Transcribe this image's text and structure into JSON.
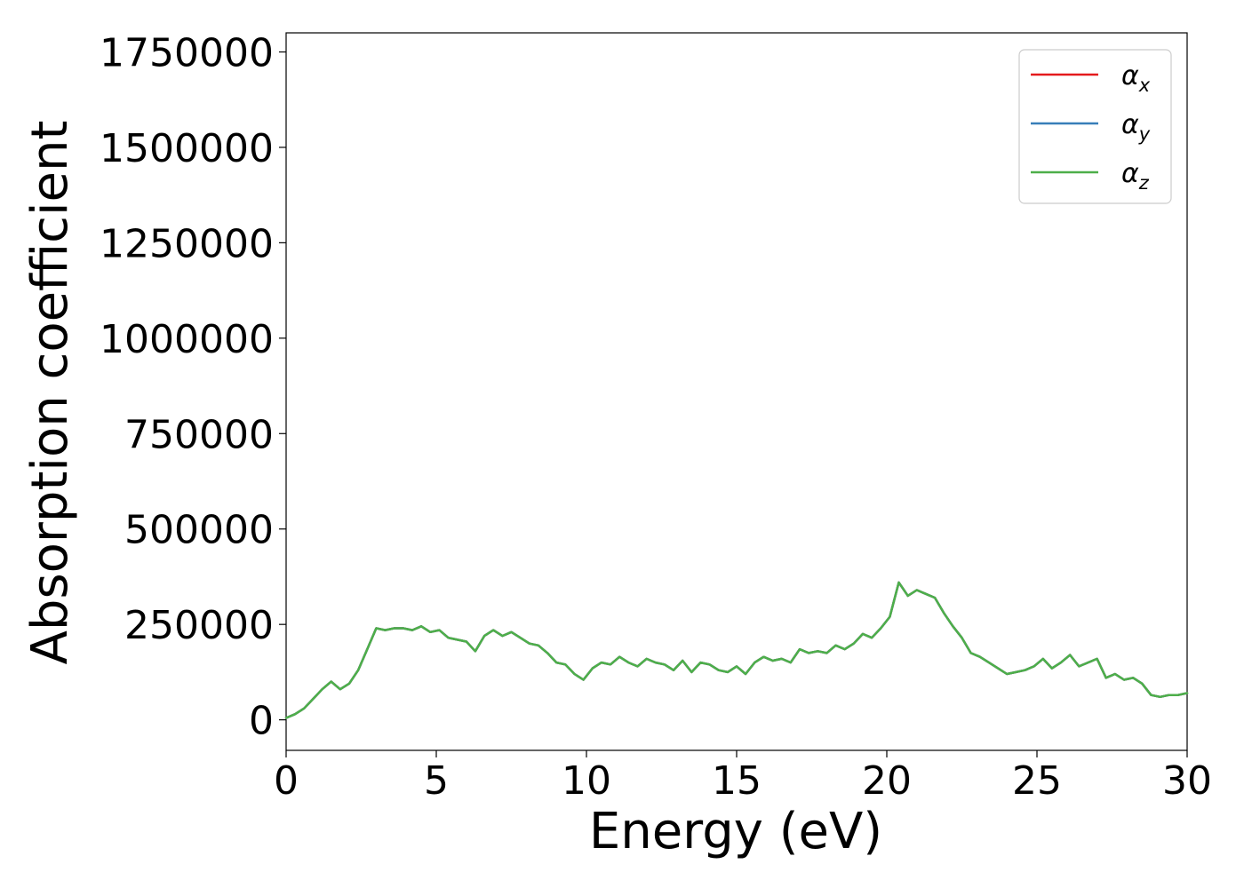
{
  "chart_data": {
    "type": "line",
    "xlabel": "Energy (eV)",
    "ylabel": "Absorption coefficient",
    "xlim": [
      0,
      30
    ],
    "ylim": [
      -80000,
      1800000
    ],
    "x_ticks": [
      "0",
      "5",
      "10",
      "15",
      "20",
      "25",
      "30"
    ],
    "y_ticks": [
      "0",
      "250000",
      "500000",
      "750000",
      "1000000",
      "1250000",
      "1500000",
      "1750000"
    ],
    "grid": false,
    "legend_position": "top-right",
    "series": [
      {
        "name": "α",
        "subscript": "x",
        "color": "#e41a1c"
      },
      {
        "name": "α",
        "subscript": "y",
        "color": "#377eb8"
      },
      {
        "name": "α",
        "subscript": "z",
        "color": "#4daf4a"
      }
    ],
    "x": [
      0,
      0.3,
      0.6,
      0.9,
      1.2,
      1.5,
      1.8,
      2.1,
      2.4,
      2.7,
      3.0,
      3.3,
      3.6,
      3.9,
      4.2,
      4.5,
      4.8,
      5.1,
      5.4,
      5.7,
      6.0,
      6.3,
      6.6,
      6.9,
      7.2,
      7.5,
      7.8,
      8.1,
      8.4,
      8.7,
      9.0,
      9.3,
      9.6,
      9.9,
      10.2,
      10.5,
      10.8,
      11.1,
      11.4,
      11.7,
      12.0,
      12.3,
      12.6,
      12.9,
      13.2,
      13.5,
      13.8,
      14.1,
      14.4,
      14.7,
      15.0,
      15.3,
      15.6,
      15.9,
      16.2,
      16.5,
      16.8,
      17.1,
      17.4,
      17.7,
      18.0,
      18.3,
      18.6,
      18.9,
      19.2,
      19.5,
      19.8,
      20.1,
      20.4,
      20.7,
      21.0,
      21.3,
      21.6,
      21.9,
      22.2,
      22.5,
      22.8,
      23.1,
      23.4,
      23.7,
      24.0,
      24.3,
      24.6,
      24.9,
      25.2,
      25.5,
      25.8,
      26.1,
      26.4,
      26.7,
      27.0,
      27.3,
      27.6,
      27.9,
      28.2,
      28.5,
      28.8,
      29.1,
      29.4,
      29.7,
      30.0
    ],
    "y": [
      5000,
      15000,
      30000,
      55000,
      80000,
      100000,
      80000,
      95000,
      130000,
      185000,
      240000,
      235000,
      240000,
      240000,
      235000,
      245000,
      230000,
      235000,
      215000,
      210000,
      205000,
      180000,
      220000,
      235000,
      220000,
      230000,
      215000,
      200000,
      195000,
      175000,
      150000,
      145000,
      120000,
      105000,
      135000,
      150000,
      145000,
      165000,
      150000,
      140000,
      160000,
      150000,
      145000,
      130000,
      155000,
      125000,
      150000,
      145000,
      130000,
      125000,
      140000,
      120000,
      150000,
      165000,
      155000,
      160000,
      150000,
      185000,
      175000,
      180000,
      175000,
      195000,
      185000,
      200000,
      225000,
      215000,
      240000,
      270000,
      360000,
      325000,
      340000,
      330000,
      320000,
      280000,
      245000,
      215000,
      175000,
      165000,
      150000,
      135000,
      120000,
      125000,
      130000,
      140000,
      160000,
      135000,
      150000,
      170000,
      140000,
      150000,
      160000,
      110000,
      120000,
      105000,
      110000,
      95000,
      65000,
      60000,
      65000,
      65000,
      70000
    ]
  }
}
